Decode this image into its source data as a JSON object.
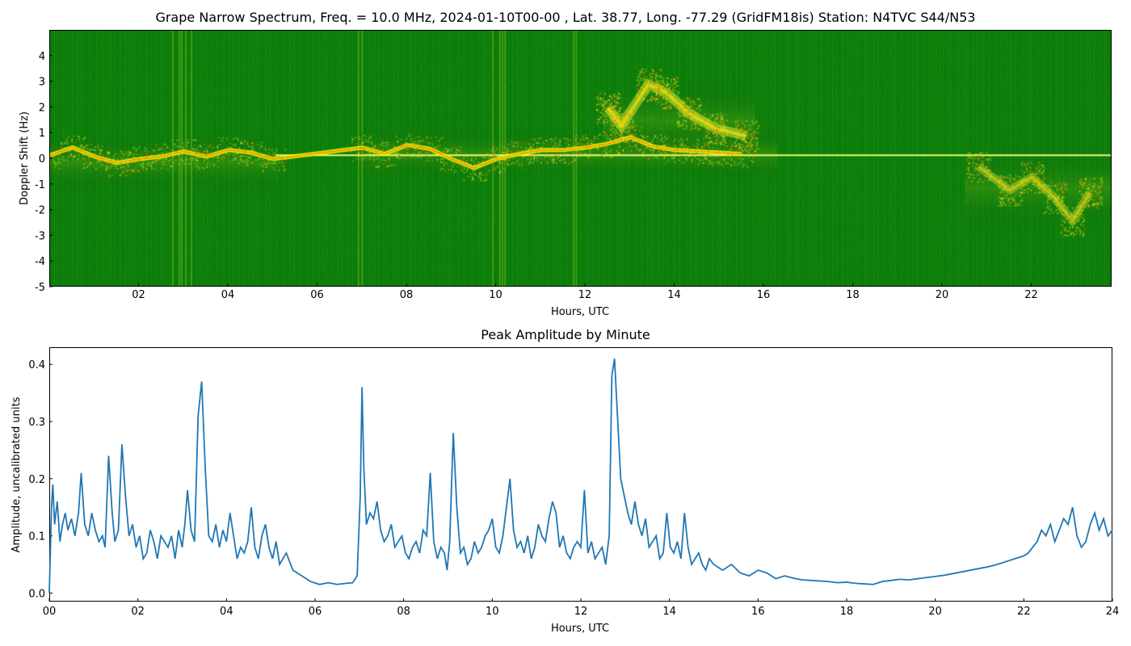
{
  "chart_data": [
    {
      "type": "heatmap",
      "title": "Grape Narrow Spectrum, Freq. = 10.0 MHz, 2024-01-10T00-00 , Lat.  38.77, Long. -77.29 (GridFM18is) Station: N4TVC S44/N53",
      "xlabel": "Hours, UTC",
      "ylabel": "Doppler Shift (Hz)",
      "xlim": [
        0,
        23.8
      ],
      "ylim": [
        -5,
        5
      ],
      "x_ticks": [
        2,
        4,
        6,
        8,
        10,
        12,
        14,
        16,
        18,
        20,
        22
      ],
      "x_tick_labels": [
        "02",
        "04",
        "06",
        "08",
        "10",
        "12",
        "14",
        "16",
        "18",
        "20",
        "22"
      ],
      "y_ticks": [
        -5,
        -4,
        -3,
        -2,
        -1,
        0,
        1,
        2,
        3,
        4
      ],
      "y_tick_labels": [
        "-5",
        "-4",
        "-3",
        "-2",
        "-1",
        "0",
        "1",
        "2",
        "3",
        "4"
      ],
      "colors": {
        "background": "#0b7d0b",
        "noise": "#63b51d",
        "mid": "#d8f02b",
        "high": "#ffd400",
        "peak": "#ff3a00"
      },
      "carrier_line": {
        "y": 0.15,
        "x_range": [
          5.05,
          23.8
        ]
      },
      "trace_points": [
        {
          "x": 0.0,
          "y": 0.15
        },
        {
          "x": 0.5,
          "y": 0.45
        },
        {
          "x": 1.0,
          "y": 0.1
        },
        {
          "x": 1.5,
          "y": -0.15
        },
        {
          "x": 2.0,
          "y": 0.0
        },
        {
          "x": 2.5,
          "y": 0.1
        },
        {
          "x": 3.0,
          "y": 0.3
        },
        {
          "x": 3.5,
          "y": 0.1
        },
        {
          "x": 4.0,
          "y": 0.35
        },
        {
          "x": 4.5,
          "y": 0.25
        },
        {
          "x": 5.0,
          "y": 0.0
        },
        {
          "x": 7.0,
          "y": 0.45
        },
        {
          "x": 7.5,
          "y": 0.2
        },
        {
          "x": 8.0,
          "y": 0.55
        },
        {
          "x": 8.5,
          "y": 0.4
        },
        {
          "x": 9.0,
          "y": 0.0
        },
        {
          "x": 9.5,
          "y": -0.35
        },
        {
          "x": 10.0,
          "y": 0.0
        },
        {
          "x": 10.5,
          "y": 0.2
        },
        {
          "x": 11.0,
          "y": 0.35
        },
        {
          "x": 11.5,
          "y": 0.35
        },
        {
          "x": 12.0,
          "y": 0.45
        },
        {
          "x": 12.5,
          "y": 0.6
        },
        {
          "x": 13.0,
          "y": 0.85
        },
        {
          "x": 13.5,
          "y": 0.5
        },
        {
          "x": 14.0,
          "y": 0.35
        },
        {
          "x": 14.5,
          "y": 0.3
        },
        {
          "x": 15.0,
          "y": 0.25
        },
        {
          "x": 15.5,
          "y": 0.2
        }
      ],
      "disturbance_points": [
        {
          "x": 12.5,
          "y": 2.0
        },
        {
          "x": 12.8,
          "y": 1.3
        },
        {
          "x": 13.4,
          "y": 2.9
        },
        {
          "x": 13.8,
          "y": 2.6
        },
        {
          "x": 14.3,
          "y": 1.8
        },
        {
          "x": 14.9,
          "y": 1.2
        },
        {
          "x": 15.6,
          "y": 0.9
        }
      ],
      "lower_disturbance_points": [
        {
          "x": 20.8,
          "y": -0.3
        },
        {
          "x": 21.5,
          "y": -1.2
        },
        {
          "x": 22.0,
          "y": -0.7
        },
        {
          "x": 22.5,
          "y": -1.5
        },
        {
          "x": 22.9,
          "y": -2.4
        },
        {
          "x": 23.3,
          "y": -1.3
        }
      ]
    },
    {
      "type": "line",
      "title": "Peak Amplitude by Minute",
      "xlabel": "Hours, UTC",
      "ylabel": "Amplitude, uncalibrated units",
      "xlim": [
        0,
        24
      ],
      "ylim": [
        -0.015,
        0.43
      ],
      "x_ticks": [
        0,
        2,
        4,
        6,
        8,
        10,
        12,
        14,
        16,
        18,
        20,
        22,
        24
      ],
      "x_tick_labels": [
        "00",
        "02",
        "04",
        "06",
        "08",
        "10",
        "12",
        "14",
        "16",
        "18",
        "20",
        "22",
        "24"
      ],
      "y_ticks": [
        0.0,
        0.1,
        0.2,
        0.3,
        0.4
      ],
      "y_tick_labels": [
        "0.0",
        "0.1",
        "0.2",
        "0.3",
        "0.4"
      ],
      "series": [
        {
          "color": "#1f77b4",
          "x": [
            0.0,
            0.02,
            0.05,
            0.08,
            0.12,
            0.18,
            0.24,
            0.3,
            0.36,
            0.42,
            0.5,
            0.58,
            0.66,
            0.72,
            0.8,
            0.88,
            0.96,
            1.04,
            1.12,
            1.2,
            1.26,
            1.34,
            1.42,
            1.48,
            1.56,
            1.64,
            1.72,
            1.8,
            1.88,
            1.96,
            2.04,
            2.12,
            2.2,
            2.28,
            2.36,
            2.44,
            2.52,
            2.6,
            2.68,
            2.76,
            2.84,
            2.92,
            3.0,
            3.06,
            3.12,
            3.2,
            3.28,
            3.36,
            3.44,
            3.52,
            3.6,
            3.68,
            3.76,
            3.84,
            3.92,
            4.0,
            4.08,
            4.16,
            4.24,
            4.32,
            4.4,
            4.48,
            4.56,
            4.64,
            4.72,
            4.8,
            4.88,
            4.96,
            5.04,
            5.12,
            5.2,
            5.35,
            5.5,
            5.7,
            5.9,
            6.1,
            6.3,
            6.5,
            6.7,
            6.85,
            6.95,
            7.02,
            7.06,
            7.1,
            7.16,
            7.24,
            7.32,
            7.4,
            7.48,
            7.56,
            7.64,
            7.72,
            7.8,
            7.88,
            7.96,
            8.04,
            8.12,
            8.2,
            8.28,
            8.36,
            8.44,
            8.52,
            8.6,
            8.68,
            8.76,
            8.84,
            8.92,
            8.98,
            9.04,
            9.12,
            9.2,
            9.28,
            9.36,
            9.44,
            9.52,
            9.6,
            9.68,
            9.76,
            9.84,
            9.92,
            10.0,
            10.08,
            10.16,
            10.24,
            10.32,
            10.4,
            10.48,
            10.56,
            10.64,
            10.72,
            10.8,
            10.88,
            10.96,
            11.04,
            11.12,
            11.2,
            11.28,
            11.36,
            11.44,
            11.52,
            11.6,
            11.68,
            11.76,
            11.84,
            11.92,
            12.0,
            12.08,
            12.16,
            12.24,
            12.32,
            12.4,
            12.48,
            12.56,
            12.64,
            12.7,
            12.76,
            12.82,
            12.9,
            12.98,
            13.06,
            13.14,
            13.22,
            13.3,
            13.38,
            13.46,
            13.54,
            13.62,
            13.7,
            13.78,
            13.86,
            13.94,
            14.02,
            14.1,
            14.18,
            14.26,
            14.34,
            14.42,
            14.5,
            14.58,
            14.66,
            14.74,
            14.82,
            14.9,
            15.0,
            15.2,
            15.4,
            15.6,
            15.8,
            16.0,
            16.2,
            16.4,
            16.6,
            16.8,
            17.0,
            17.2,
            17.4,
            17.6,
            17.8,
            18.0,
            18.2,
            18.4,
            18.6,
            18.8,
            19.0,
            19.2,
            19.4,
            19.6,
            19.8,
            20.0,
            20.2,
            20.4,
            20.6,
            20.8,
            21.0,
            21.2,
            21.4,
            21.6,
            21.8,
            22.0,
            22.1,
            22.2,
            22.3,
            22.4,
            22.5,
            22.6,
            22.7,
            22.8,
            22.9,
            23.0,
            23.1,
            23.2,
            23.3,
            23.4,
            23.5,
            23.6,
            23.7,
            23.8,
            23.9,
            24.0
          ],
          "y": [
            0.0,
            0.06,
            0.15,
            0.19,
            0.12,
            0.16,
            0.09,
            0.12,
            0.14,
            0.11,
            0.13,
            0.1,
            0.14,
            0.21,
            0.12,
            0.1,
            0.14,
            0.11,
            0.09,
            0.1,
            0.08,
            0.24,
            0.14,
            0.09,
            0.11,
            0.26,
            0.17,
            0.1,
            0.12,
            0.08,
            0.1,
            0.06,
            0.07,
            0.11,
            0.09,
            0.06,
            0.1,
            0.09,
            0.08,
            0.1,
            0.06,
            0.11,
            0.08,
            0.12,
            0.18,
            0.11,
            0.09,
            0.31,
            0.37,
            0.22,
            0.1,
            0.09,
            0.12,
            0.08,
            0.11,
            0.09,
            0.14,
            0.1,
            0.06,
            0.08,
            0.07,
            0.09,
            0.15,
            0.08,
            0.06,
            0.1,
            0.12,
            0.08,
            0.06,
            0.09,
            0.05,
            0.07,
            0.04,
            0.03,
            0.02,
            0.015,
            0.018,
            0.015,
            0.017,
            0.018,
            0.03,
            0.17,
            0.36,
            0.22,
            0.12,
            0.14,
            0.13,
            0.16,
            0.11,
            0.09,
            0.1,
            0.12,
            0.08,
            0.09,
            0.1,
            0.07,
            0.06,
            0.08,
            0.09,
            0.07,
            0.11,
            0.1,
            0.21,
            0.09,
            0.06,
            0.08,
            0.07,
            0.04,
            0.09,
            0.28,
            0.15,
            0.07,
            0.08,
            0.05,
            0.06,
            0.09,
            0.07,
            0.08,
            0.1,
            0.11,
            0.13,
            0.08,
            0.07,
            0.1,
            0.15,
            0.2,
            0.11,
            0.08,
            0.09,
            0.07,
            0.1,
            0.06,
            0.08,
            0.12,
            0.1,
            0.09,
            0.13,
            0.16,
            0.14,
            0.08,
            0.1,
            0.07,
            0.06,
            0.08,
            0.09,
            0.08,
            0.18,
            0.07,
            0.09,
            0.06,
            0.07,
            0.08,
            0.05,
            0.1,
            0.38,
            0.41,
            0.32,
            0.2,
            0.17,
            0.14,
            0.12,
            0.16,
            0.12,
            0.1,
            0.13,
            0.08,
            0.09,
            0.1,
            0.06,
            0.07,
            0.14,
            0.08,
            0.07,
            0.09,
            0.06,
            0.14,
            0.08,
            0.05,
            0.06,
            0.07,
            0.05,
            0.04,
            0.06,
            0.05,
            0.04,
            0.05,
            0.035,
            0.03,
            0.04,
            0.035,
            0.025,
            0.03,
            0.026,
            0.023,
            0.022,
            0.021,
            0.02,
            0.018,
            0.019,
            0.017,
            0.016,
            0.015,
            0.02,
            0.022,
            0.024,
            0.023,
            0.025,
            0.027,
            0.029,
            0.031,
            0.034,
            0.037,
            0.04,
            0.043,
            0.046,
            0.05,
            0.055,
            0.06,
            0.065,
            0.07,
            0.08,
            0.09,
            0.11,
            0.1,
            0.12,
            0.09,
            0.11,
            0.13,
            0.12,
            0.15,
            0.1,
            0.08,
            0.09,
            0.12,
            0.14,
            0.11,
            0.13,
            0.1,
            0.11
          ]
        }
      ]
    }
  ]
}
